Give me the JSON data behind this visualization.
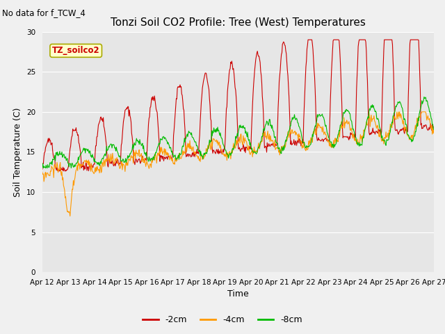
{
  "title": "Tonzi Soil CO2 Profile: Tree (West) Temperatures",
  "no_data_text": "No data for f_TCW_4",
  "sensor_label": "TZ_soilco2",
  "ylabel": "Soil Temperature (C)",
  "xlabel": "Time",
  "ylim": [
    0,
    30
  ],
  "yticks": [
    0,
    5,
    10,
    15,
    20,
    25,
    30
  ],
  "color_2cm": "#cc0000",
  "color_4cm": "#ff9900",
  "color_8cm": "#00bb00",
  "bg_color": "#e6e6e6",
  "fig_color": "#f0f0f0",
  "legend_labels": [
    "-2cm",
    "-4cm",
    "-8cm"
  ],
  "x_tick_labels": [
    "Apr 12",
    "Apr 13",
    "Apr 14",
    "Apr 15",
    "Apr 16",
    "Apr 17",
    "Apr 18",
    "Apr 19",
    "Apr 20",
    "Apr 21",
    "Apr 22",
    "Apr 23",
    "Apr 24",
    "Apr 25",
    "Apr 26",
    "Apr 27"
  ],
  "title_fontsize": 11,
  "axis_label_fontsize": 9,
  "tick_fontsize": 7.5,
  "legend_fontsize": 9,
  "annotation_fontsize": 8.5,
  "sensor_fontsize": 8.5
}
